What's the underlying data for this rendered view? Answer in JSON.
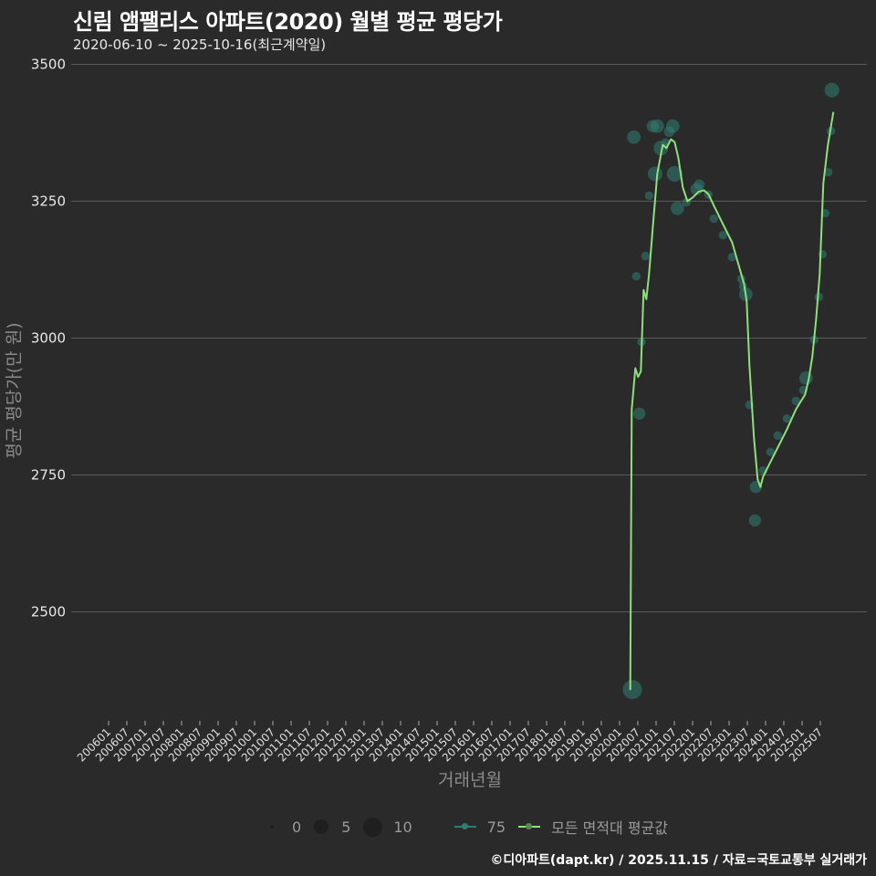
{
  "title": "신림 앰팰리스 아파트(2020) 월별 평균 평당가",
  "subtitle": "2020-06-10 ~ 2025-10-16(최근계약일)",
  "footer": "©디아파트(dapt.kr) / 2025.11.15 / 자료=국토교통부 실거래가",
  "colors": {
    "background": "#2a2a2b",
    "grid": "#5a5a5a",
    "avg_line": "#8ee07a",
    "points_75": "#2f7e72"
  },
  "legend": {
    "size_items": [
      {
        "label": "0",
        "r": 2
      },
      {
        "label": "5",
        "r": 8
      },
      {
        "label": "10",
        "r": 11
      }
    ],
    "series_75": "75",
    "series_avg": "모든 면적대 평균값"
  },
  "chart_data": {
    "type": "line",
    "title": "신림 앰팰리스 아파트(2020) 월별 평균 평당가",
    "subtitle": "2020-06-10 ~ 2025-10-16(최근계약일)",
    "xlabel": "거래년월",
    "ylabel": "평균 평당가(만 원)",
    "ylim": [
      2310,
      3500
    ],
    "yticks": [
      2500,
      2750,
      3000,
      3250,
      3500
    ],
    "grid": true,
    "xticks": [
      "200601",
      "200607",
      "200701",
      "200707",
      "200801",
      "200807",
      "200901",
      "200907",
      "201001",
      "201007",
      "201101",
      "201107",
      "201201",
      "201207",
      "201301",
      "201307",
      "201401",
      "201407",
      "201501",
      "201507",
      "201601",
      "201607",
      "201701",
      "201707",
      "201801",
      "201807",
      "201901",
      "201907",
      "202001",
      "202007",
      "202101",
      "202107",
      "202201",
      "202207",
      "202301",
      "202307",
      "202401",
      "202407",
      "202501",
      "202507"
    ],
    "legend_position": "bottom",
    "series": [
      {
        "name": "모든 면적대 평균값",
        "type": "line",
        "points": [
          {
            "m": 171.5,
            "v": 2357
          },
          {
            "m": 172.0,
            "v": 2870
          },
          {
            "m": 173.2,
            "v": 2945
          },
          {
            "m": 174.1,
            "v": 2929
          },
          {
            "m": 175.0,
            "v": 2939
          },
          {
            "m": 175.9,
            "v": 3088
          },
          {
            "m": 176.8,
            "v": 3071
          },
          {
            "m": 177.7,
            "v": 3117
          },
          {
            "m": 178.9,
            "v": 3200
          },
          {
            "m": 180.4,
            "v": 3300
          },
          {
            "m": 182.2,
            "v": 3353
          },
          {
            "m": 183.4,
            "v": 3347
          },
          {
            "m": 184.9,
            "v": 3363
          },
          {
            "m": 186.1,
            "v": 3358
          },
          {
            "m": 187.3,
            "v": 3330
          },
          {
            "m": 188.8,
            "v": 3275
          },
          {
            "m": 190.3,
            "v": 3250
          },
          {
            "m": 192.1,
            "v": 3257
          },
          {
            "m": 193.9,
            "v": 3267
          },
          {
            "m": 195.7,
            "v": 3270
          },
          {
            "m": 197.2,
            "v": 3263
          },
          {
            "m": 199.0,
            "v": 3242
          },
          {
            "m": 202.0,
            "v": 3208
          },
          {
            "m": 205.0,
            "v": 3175
          },
          {
            "m": 208.0,
            "v": 3117
          },
          {
            "m": 208.9,
            "v": 3100
          },
          {
            "m": 209.8,
            "v": 3067
          },
          {
            "m": 210.7,
            "v": 2950
          },
          {
            "m": 212.2,
            "v": 2817
          },
          {
            "m": 213.4,
            "v": 2742
          },
          {
            "m": 214.3,
            "v": 2728
          },
          {
            "m": 215.2,
            "v": 2747
          },
          {
            "m": 217.0,
            "v": 2767
          },
          {
            "m": 220.0,
            "v": 2800
          },
          {
            "m": 223.0,
            "v": 2833
          },
          {
            "m": 226.0,
            "v": 2870
          },
          {
            "m": 229.0,
            "v": 2897
          },
          {
            "m": 230.2,
            "v": 2925
          },
          {
            "m": 231.4,
            "v": 2967
          },
          {
            "m": 232.6,
            "v": 3033
          },
          {
            "m": 233.8,
            "v": 3117
          },
          {
            "m": 235.0,
            "v": 3283
          },
          {
            "m": 236.5,
            "v": 3353
          },
          {
            "m": 238.3,
            "v": 3413
          }
        ]
      },
      {
        "name": "75",
        "type": "scatter",
        "points": [
          {
            "m": 172.2,
            "v": 2358,
            "n": 10
          },
          {
            "m": 172.7,
            "v": 3367,
            "n": 4
          },
          {
            "m": 173.5,
            "v": 3113,
            "n": 1
          },
          {
            "m": 174.5,
            "v": 2862,
            "n": 3
          },
          {
            "m": 175.2,
            "v": 2993,
            "n": 1
          },
          {
            "m": 176.5,
            "v": 3150,
            "n": 1
          },
          {
            "m": 177.7,
            "v": 3260,
            "n": 1
          },
          {
            "m": 178.9,
            "v": 3387,
            "n": 3
          },
          {
            "m": 179.7,
            "v": 3300,
            "n": 5
          },
          {
            "m": 180.4,
            "v": 3387,
            "n": 4
          },
          {
            "m": 181.6,
            "v": 3347,
            "n": 5
          },
          {
            "m": 183.1,
            "v": 3357,
            "n": 1
          },
          {
            "m": 184.3,
            "v": 3377,
            "n": 2
          },
          {
            "m": 185.5,
            "v": 3387,
            "n": 4
          },
          {
            "m": 186.1,
            "v": 3300,
            "n": 6
          },
          {
            "m": 187.0,
            "v": 3237,
            "n": 4
          },
          {
            "m": 190.0,
            "v": 3248,
            "n": 1
          },
          {
            "m": 193.3,
            "v": 3272,
            "n": 3
          },
          {
            "m": 194.2,
            "v": 3280,
            "n": 2
          },
          {
            "m": 197.2,
            "v": 3262,
            "n": 1
          },
          {
            "m": 199.0,
            "v": 3218,
            "n": 1
          },
          {
            "m": 202.0,
            "v": 3188,
            "n": 1
          },
          {
            "m": 205.0,
            "v": 3148,
            "n": 1
          },
          {
            "m": 208.0,
            "v": 3108,
            "n": 1
          },
          {
            "m": 208.6,
            "v": 3095,
            "n": 1
          },
          {
            "m": 209.5,
            "v": 3080,
            "n": 4
          },
          {
            "m": 210.7,
            "v": 2878,
            "n": 1
          },
          {
            "m": 212.8,
            "v": 2728,
            "n": 3
          },
          {
            "m": 212.5,
            "v": 2667,
            "n": 3
          },
          {
            "m": 215.2,
            "v": 2758,
            "n": 1
          },
          {
            "m": 217.6,
            "v": 2792,
            "n": 1
          },
          {
            "m": 220.0,
            "v": 2822,
            "n": 1
          },
          {
            "m": 223.0,
            "v": 2853,
            "n": 1
          },
          {
            "m": 226.0,
            "v": 2885,
            "n": 1
          },
          {
            "m": 228.4,
            "v": 2905,
            "n": 1
          },
          {
            "m": 229.3,
            "v": 2927,
            "n": 4
          },
          {
            "m": 232.0,
            "v": 2997,
            "n": 1
          },
          {
            "m": 233.5,
            "v": 3075,
            "n": 1
          },
          {
            "m": 234.7,
            "v": 3153,
            "n": 1
          },
          {
            "m": 235.6,
            "v": 3228,
            "n": 1
          },
          {
            "m": 236.6,
            "v": 3303,
            "n": 1
          },
          {
            "m": 237.5,
            "v": 3378,
            "n": 1
          },
          {
            "m": 237.8,
            "v": 3453,
            "n": 5
          }
        ]
      }
    ]
  }
}
